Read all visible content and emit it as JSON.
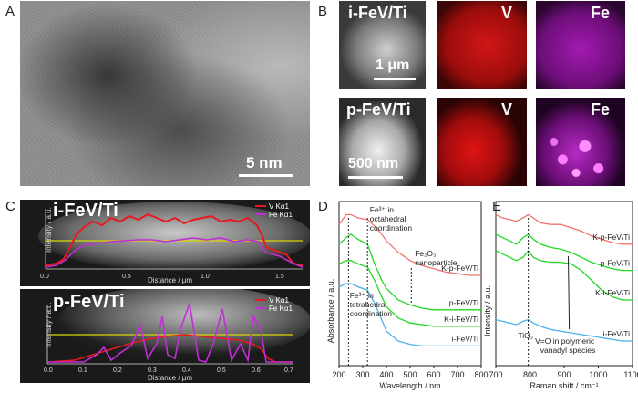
{
  "panels": {
    "A": {
      "label": "A",
      "scalebar": "5 nm"
    },
    "B": {
      "label": "B",
      "row1": {
        "sample": "i-FeV/Ti",
        "scalebar": "1 μm",
        "map1": "V",
        "map2": "Fe"
      },
      "row2": {
        "sample": "p-FeV/Ti",
        "scalebar": "500 nm",
        "map1": "V",
        "map2": "Fe"
      }
    },
    "C": {
      "label": "C",
      "top": {
        "sample": "i-FeV/Ti",
        "legend": [
          "V Kα1",
          "Fe Kα1"
        ],
        "ylabel": "Intensity / a.u.",
        "xlabel": "Distance / μm",
        "xticks": [
          "0.0",
          "0.5",
          "1.0",
          "1.5"
        ]
      },
      "bottom": {
        "sample": "p-FeV/Ti",
        "legend": [
          "V Kα1",
          "Fe Kα1"
        ],
        "ylabel": "Intensity / a.u.",
        "xlabel": "Distance / μm",
        "xticks": [
          "0.0",
          "0.1",
          "0.2",
          "0.3",
          "0.4",
          "0.5",
          "0.6",
          "0.7"
        ]
      }
    },
    "D": {
      "label": "D"
    },
    "E": {
      "label": "E"
    }
  },
  "colors": {
    "V": "#e8191e",
    "Fe": "#c22ed6",
    "baseline": "#d8d600",
    "green": "#22d822",
    "blue": "#4bb3e8",
    "salmon": "#f0756e"
  },
  "chart_data": [
    {
      "type": "line",
      "panel": "D",
      "xlabel": "Wavelength / nm",
      "ylabel": "Absorbance / a.u.",
      "xlim": [
        200,
        800
      ],
      "xticks": [
        "200",
        "300",
        "400",
        "500",
        "600",
        "700",
        "800"
      ],
      "annotations": [
        "Fe³⁺ in octahedral coordination",
        "Fe₂O₃ nanoparticle",
        "Fe³⁺ in tetrahedral coordination"
      ],
      "series": [
        {
          "name": "K-p-FeV/Ti",
          "color": "#f0756e",
          "x": [
            200,
            230,
            250,
            280,
            320,
            350,
            380,
            400,
            450,
            500,
            550,
            600,
            650,
            700,
            750,
            800
          ],
          "y": [
            0.86,
            0.92,
            0.92,
            0.9,
            0.89,
            0.85,
            0.8,
            0.76,
            0.69,
            0.64,
            0.61,
            0.59,
            0.57,
            0.56,
            0.55,
            0.55
          ]
        },
        {
          "name": "p-FeV/Ti",
          "color": "#22d822",
          "x": [
            200,
            230,
            250,
            280,
            320,
            350,
            380,
            400,
            450,
            500,
            550,
            600,
            650,
            700,
            750,
            800
          ],
          "y": [
            0.74,
            0.78,
            0.8,
            0.77,
            0.74,
            0.62,
            0.52,
            0.47,
            0.4,
            0.37,
            0.35,
            0.34,
            0.34,
            0.34,
            0.34,
            0.34
          ]
        },
        {
          "name": "K-i-FeV/Ti",
          "color": "#22d822",
          "x": [
            200,
            230,
            250,
            280,
            320,
            350,
            380,
            400,
            450,
            500,
            550,
            600,
            650,
            700,
            750,
            800
          ],
          "y": [
            0.62,
            0.64,
            0.64,
            0.62,
            0.6,
            0.52,
            0.42,
            0.36,
            0.29,
            0.26,
            0.25,
            0.24,
            0.24,
            0.24,
            0.24,
            0.24
          ]
        },
        {
          "name": "i-FeV/Ti",
          "color": "#4bb3e8",
          "x": [
            200,
            230,
            250,
            280,
            320,
            350,
            380,
            400,
            450,
            500,
            550,
            600,
            650,
            700,
            750,
            800
          ],
          "y": [
            0.48,
            0.5,
            0.5,
            0.48,
            0.46,
            0.38,
            0.28,
            0.21,
            0.15,
            0.13,
            0.12,
            0.12,
            0.12,
            0.12,
            0.12,
            0.12
          ]
        }
      ]
    },
    {
      "type": "line",
      "panel": "E",
      "xlabel": "Raman shift / cm⁻¹",
      "ylabel": "Intensity / a.u.",
      "xlim": [
        700,
        1100
      ],
      "xticks": [
        "700",
        "800",
        "900",
        "1000",
        "1100"
      ],
      "annotations": [
        "TiO₂",
        "V=O in polymeric vanadyl species"
      ],
      "series": [
        {
          "name": "K-p-FeV/Ti",
          "color": "#f0756e",
          "x": [
            700,
            720,
            740,
            760,
            780,
            795,
            810,
            830,
            860,
            890,
            920,
            950,
            980,
            1010,
            1040,
            1070,
            1100
          ],
          "y": [
            0.92,
            0.9,
            0.89,
            0.88,
            0.9,
            0.92,
            0.9,
            0.87,
            0.86,
            0.86,
            0.84,
            0.82,
            0.79,
            0.77,
            0.75,
            0.74,
            0.74
          ]
        },
        {
          "name": "p-FeV/Ti",
          "color": "#22d822",
          "x": [
            700,
            720,
            740,
            760,
            780,
            795,
            810,
            830,
            860,
            890,
            920,
            950,
            980,
            1010,
            1040,
            1070,
            1100
          ],
          "y": [
            0.8,
            0.78,
            0.76,
            0.74,
            0.78,
            0.8,
            0.77,
            0.74,
            0.72,
            0.71,
            0.69,
            0.66,
            0.63,
            0.61,
            0.59,
            0.58,
            0.58
          ]
        },
        {
          "name": "K-i-FeV/Ti",
          "color": "#22d822",
          "x": [
            700,
            720,
            740,
            760,
            780,
            795,
            810,
            830,
            860,
            890,
            920,
            950,
            980,
            1010,
            1040,
            1070,
            1100
          ],
          "y": [
            0.7,
            0.68,
            0.66,
            0.64,
            0.66,
            0.7,
            0.66,
            0.64,
            0.63,
            0.63,
            0.62,
            0.58,
            0.52,
            0.46,
            0.42,
            0.4,
            0.4
          ]
        },
        {
          "name": "i-FeV/Ti",
          "color": "#4bb3e8",
          "x": [
            700,
            720,
            740,
            760,
            780,
            795,
            810,
            830,
            860,
            890,
            920,
            950,
            980,
            1010,
            1040,
            1070,
            1100
          ],
          "y": [
            0.28,
            0.27,
            0.26,
            0.25,
            0.27,
            0.28,
            0.26,
            0.24,
            0.22,
            0.21,
            0.2,
            0.19,
            0.18,
            0.17,
            0.16,
            0.15,
            0.15
          ]
        }
      ]
    }
  ]
}
